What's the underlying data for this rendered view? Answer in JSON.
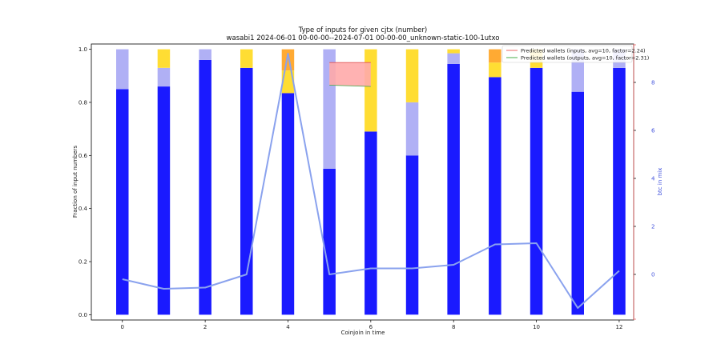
{
  "chart_data": {
    "type": "bar",
    "title": "Type of inputs for given cjtx (number)",
    "subtitle": "wasabi1 2024-06-01 00-00-00--2024-07-01 00-00-00_unknown-static-100-1utxo",
    "xlabel": "Coinjoin in time",
    "ylabel": "Fraction of input numbers",
    "y2label": "btc in mix",
    "x": [
      0,
      1,
      2,
      3,
      4,
      5,
      6,
      7,
      8,
      9,
      10,
      11,
      12
    ],
    "x_ticks": [
      0,
      2,
      4,
      6,
      8,
      10,
      12
    ],
    "y_ticks": [
      0.0,
      0.2,
      0.4,
      0.6,
      0.8,
      1.0
    ],
    "y2_ticks": [
      0,
      2,
      4,
      6,
      8
    ],
    "ylim": [
      -0.02,
      1.02
    ],
    "y2lim": [
      -1.9,
      9.6
    ],
    "series": [
      {
        "color": "#1a1aff",
        "values": [
          0.85,
          0.86,
          0.96,
          0.93,
          0.835,
          0.55,
          0.69,
          0.6,
          0.945,
          0.895,
          0.93,
          0.84,
          0.93
        ]
      },
      {
        "color": "#b0b0f5",
        "values": [
          0.15,
          0.07,
          0.04,
          0.0,
          0.0,
          0.45,
          0.0,
          0.2,
          0.04,
          0.0,
          0.0,
          0.16,
          0.07
        ]
      },
      {
        "color": "#ffdd33",
        "values": [
          0.0,
          0.07,
          0.0,
          0.07,
          0.085,
          0.0,
          0.31,
          0.2,
          0.015,
          0.055,
          0.07,
          0.0,
          0.0
        ]
      },
      {
        "color": "#ffaa33",
        "values": [
          0.0,
          0.0,
          0.0,
          0.0,
          0.08,
          0.0,
          0.0,
          0.0,
          0.0,
          0.05,
          0.0,
          0.0,
          0.0
        ]
      }
    ],
    "btc_line": {
      "color": "#8aa2ee",
      "values": [
        -0.2,
        -0.6,
        -0.55,
        0.0,
        9.2,
        0.0,
        0.25,
        0.25,
        0.4,
        1.25,
        1.3,
        -1.4,
        0.15
      ]
    },
    "shaded_region": {
      "x": [
        5,
        6
      ],
      "upper": [
        0.95,
        0.95
      ],
      "lower": [
        0.865,
        0.86
      ],
      "fill": "#ffaaaa",
      "upper_color": "#e05555",
      "lower_color": "#55aa55"
    },
    "legend": {
      "placement": "top-right",
      "entries": [
        {
          "label": "Predicted wallets (inputs, avg=10, factor=2.24)",
          "color": "#f08080"
        },
        {
          "label": "Predicted wallets (outputs, avg=10, factor=2.31)",
          "color": "#66bb66"
        }
      ]
    },
    "grid": false
  }
}
